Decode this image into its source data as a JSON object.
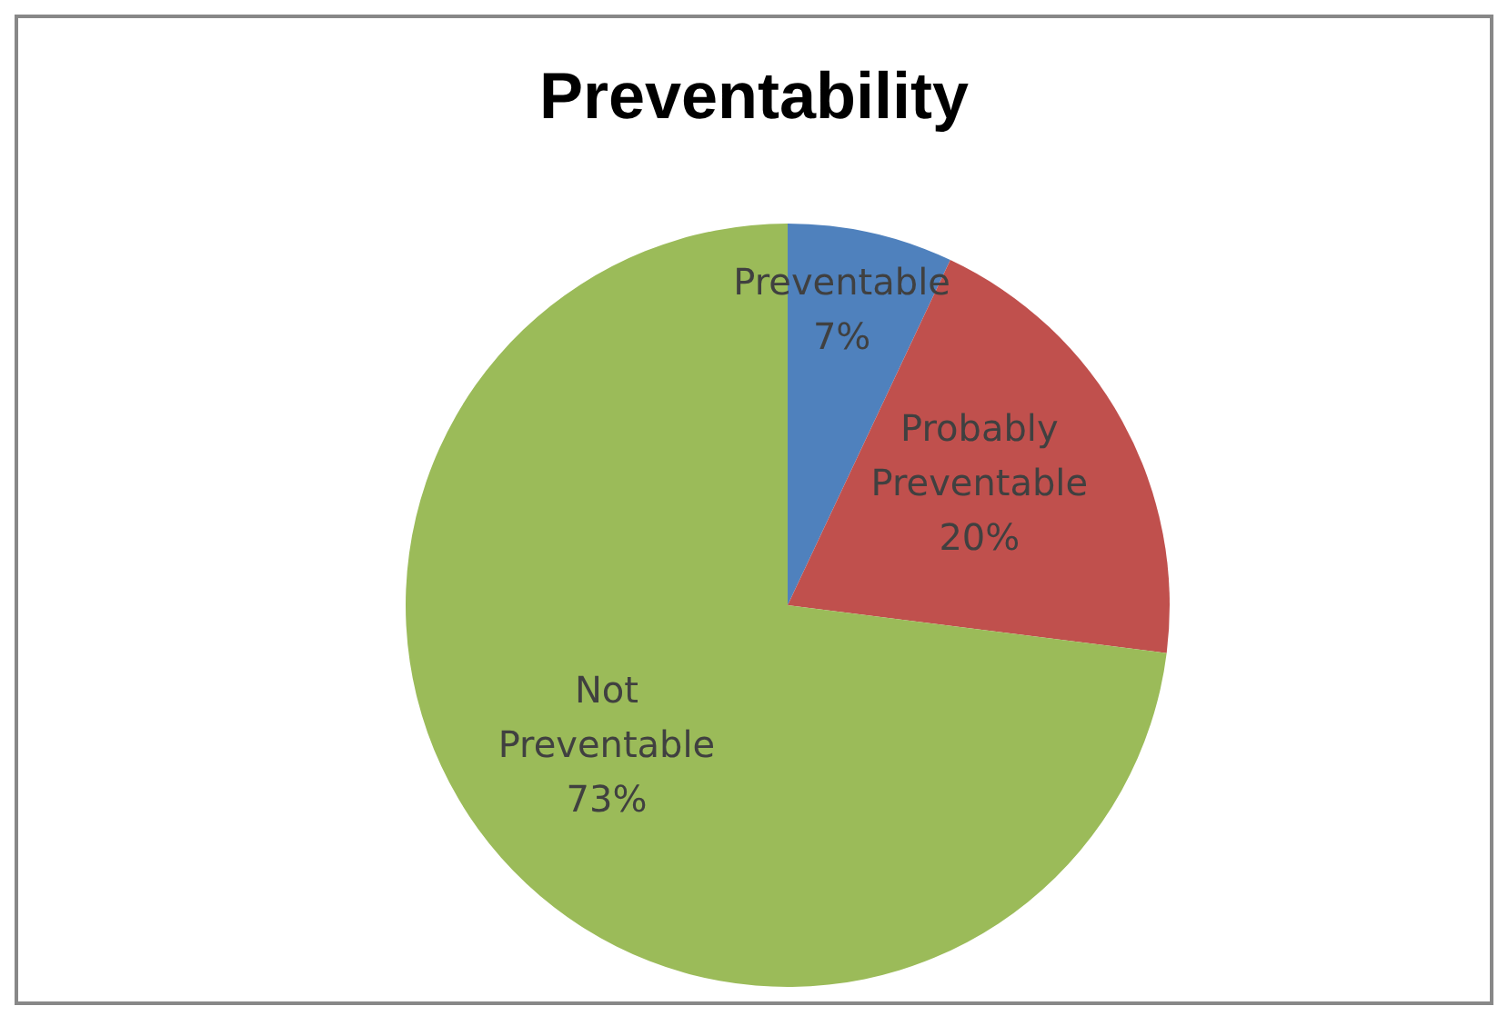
{
  "chart_data": {
    "type": "pie",
    "title": "Preventability",
    "categories": [
      "Preventable",
      "Probably Preventable",
      "Not Preventable"
    ],
    "values": [
      7,
      20,
      73
    ],
    "colors": [
      "#4f81bd",
      "#c0504d",
      "#9bbb59"
    ],
    "value_labels": [
      "7%",
      "20%",
      "73%"
    ]
  }
}
